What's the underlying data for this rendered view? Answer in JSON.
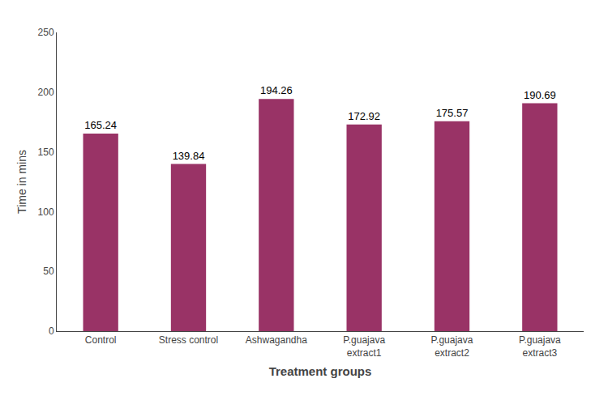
{
  "chart_data": {
    "type": "bar",
    "categories": [
      "Control",
      "Stress control",
      "Ashwagandha",
      "P.guajava\nextract1",
      "P.guajava\nextract2",
      "P.guajava\nextract3"
    ],
    "values": [
      165.24,
      139.84,
      194.26,
      172.92,
      175.57,
      190.69
    ],
    "color": "#993366",
    "xlabel": "Treatment groups",
    "ylabel": "Time in mins",
    "ylim": [
      0,
      250
    ],
    "yticks": [
      0,
      50,
      100,
      150,
      200,
      250
    ],
    "grid": false,
    "data_labels": true
  }
}
